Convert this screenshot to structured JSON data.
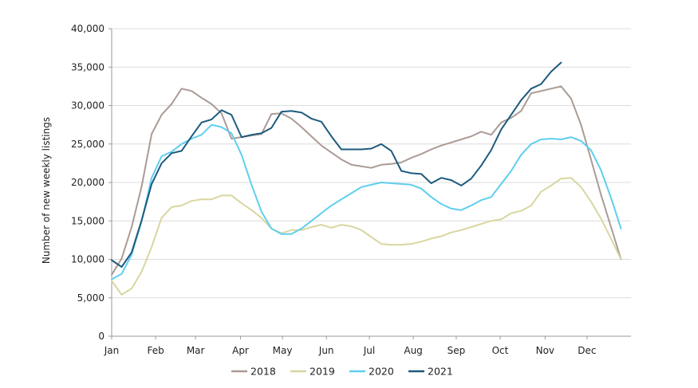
{
  "chart_data": {
    "type": "line",
    "title": "",
    "xlabel": "",
    "ylabel": "Number of new weekly listings",
    "ylim": [
      0,
      40000
    ],
    "yticks": [
      0,
      5000,
      10000,
      15000,
      20000,
      25000,
      30000,
      35000,
      40000
    ],
    "ytick_labels": [
      "0",
      "5,000",
      "10,000",
      "15,000",
      "20,000",
      "25,000",
      "30,000",
      "35,000",
      "40,000"
    ],
    "x_unit": "week",
    "xlim": [
      1,
      53
    ],
    "month_ticks": [
      {
        "label": "Jan",
        "week": 1
      },
      {
        "label": "Feb",
        "week": 5.4
      },
      {
        "label": "Mar",
        "week": 9.4
      },
      {
        "label": "Apr",
        "week": 13.9
      },
      {
        "label": "May",
        "week": 18.1
      },
      {
        "label": "Jun",
        "week": 22.5
      },
      {
        "label": "Jul",
        "week": 26.8
      },
      {
        "label": "Aug",
        "week": 31.2
      },
      {
        "label": "Sep",
        "week": 35.5
      },
      {
        "label": "Oct",
        "week": 39.9
      },
      {
        "label": "Nov",
        "week": 44.4
      },
      {
        "label": "Dec",
        "week": 48.6
      }
    ],
    "grid": "horizontal",
    "legend_position": "bottom",
    "series": [
      {
        "name": "2018",
        "color": "#aa9b95",
        "values": [
          8000,
          10100,
          14200,
          19500,
          26300,
          28800,
          30200,
          32200,
          31900,
          31000,
          30200,
          29000,
          25700,
          25900,
          26100,
          26300,
          28900,
          29000,
          28300,
          27200,
          26000,
          24800,
          23900,
          23000,
          22300,
          22100,
          21900,
          22300,
          22400,
          22600,
          23200,
          23700,
          24300,
          24800,
          25200,
          25600,
          26000,
          26600,
          26200,
          27800,
          28400,
          29300,
          31600,
          31900,
          32200,
          32500,
          30900,
          27500,
          23000,
          18400,
          14200,
          10000
        ]
      },
      {
        "name": "2019",
        "color": "#d9d6a0",
        "values": [
          7200,
          5400,
          6200,
          8400,
          11600,
          15400,
          16800,
          17000,
          17600,
          17800,
          17800,
          18300,
          18300,
          17300,
          16400,
          15400,
          14000,
          13400,
          13800,
          13800,
          14200,
          14500,
          14100,
          14500,
          14300,
          13800,
          12900,
          12000,
          11900,
          11900,
          12000,
          12300,
          12700,
          13000,
          13500,
          13800,
          14200,
          14600,
          15000,
          15200,
          16000,
          16300,
          17000,
          18800,
          19600,
          20500,
          20600,
          19400,
          17500,
          15300,
          12700,
          10000
        ]
      },
      {
        "name": "2020",
        "color": "#5ecfef",
        "values": [
          7400,
          8100,
          10600,
          15000,
          20600,
          23400,
          24000,
          25000,
          25700,
          26200,
          27500,
          27200,
          26400,
          23600,
          19700,
          16200,
          14000,
          13300,
          13300,
          14000,
          15000,
          16000,
          17000,
          17800,
          18600,
          19400,
          19700,
          20000,
          19900,
          19800,
          19700,
          19200,
          18100,
          17200,
          16600,
          16400,
          17000,
          17700,
          18100,
          19800,
          21500,
          23600,
          25000,
          25600,
          25700,
          25600,
          25900,
          25400,
          24200,
          21600,
          18000,
          14000
        ]
      },
      {
        "name": "2021",
        "color": "#1d5a7d",
        "values": [
          9900,
          9000,
          10900,
          15100,
          19800,
          22500,
          23800,
          24100,
          26000,
          27800,
          28200,
          29400,
          28800,
          25900,
          26200,
          26400,
          27100,
          29200,
          29300,
          29100,
          28300,
          27900,
          26000,
          24300,
          24300,
          24300,
          24400,
          25000,
          24100,
          21500,
          21200,
          21100,
          19900,
          20600,
          20300,
          19600,
          20500,
          22200,
          24200,
          26900,
          28800,
          30700,
          32200,
          32800,
          34400,
          35600
        ]
      }
    ]
  }
}
